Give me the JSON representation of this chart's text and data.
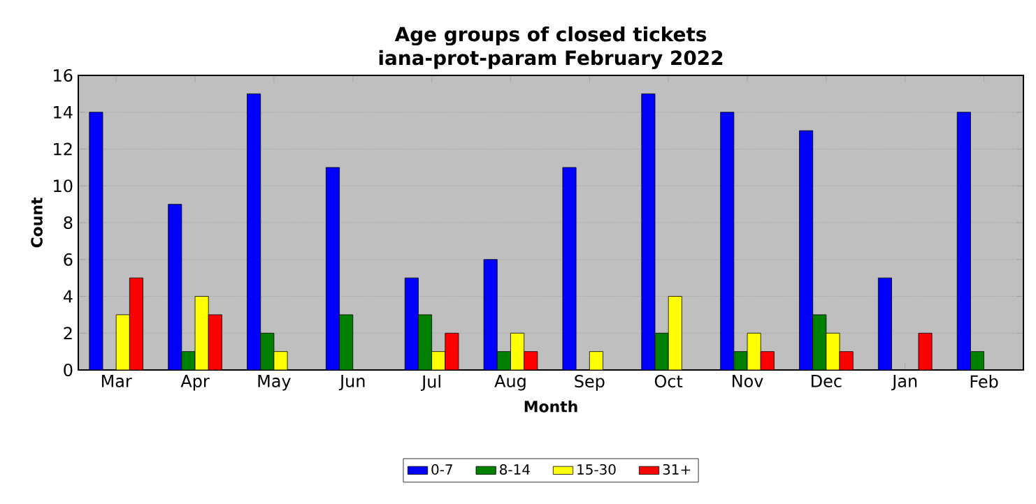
{
  "chart_data": {
    "type": "bar",
    "title": "Age groups of closed tickets\niana-prot-param February 2022",
    "xlabel": "Month",
    "ylabel": "Count",
    "categories": [
      "Mar",
      "Apr",
      "May",
      "Jun",
      "Jul",
      "Aug",
      "Sep",
      "Oct",
      "Nov",
      "Dec",
      "Jan",
      "Feb"
    ],
    "series": [
      {
        "name": "0-7",
        "color": "#0000ff",
        "values": [
          14,
          9,
          15,
          11,
          5,
          6,
          11,
          15,
          14,
          13,
          5,
          14
        ]
      },
      {
        "name": "8-14",
        "color": "#008000",
        "values": [
          0,
          1,
          2,
          3,
          3,
          1,
          0,
          2,
          1,
          3,
          0,
          1
        ]
      },
      {
        "name": "15-30",
        "color": "#ffff00",
        "values": [
          3,
          4,
          1,
          0,
          1,
          2,
          1,
          4,
          2,
          2,
          0,
          0
        ]
      },
      {
        "name": "31+",
        "color": "#ff0000",
        "values": [
          5,
          3,
          0,
          0,
          2,
          1,
          0,
          0,
          1,
          1,
          2,
          0
        ]
      }
    ],
    "ylim": [
      0,
      16
    ],
    "yticks": [
      0,
      2,
      4,
      6,
      8,
      10,
      12,
      14,
      16
    ],
    "grid": "y",
    "legend": "bottom"
  }
}
